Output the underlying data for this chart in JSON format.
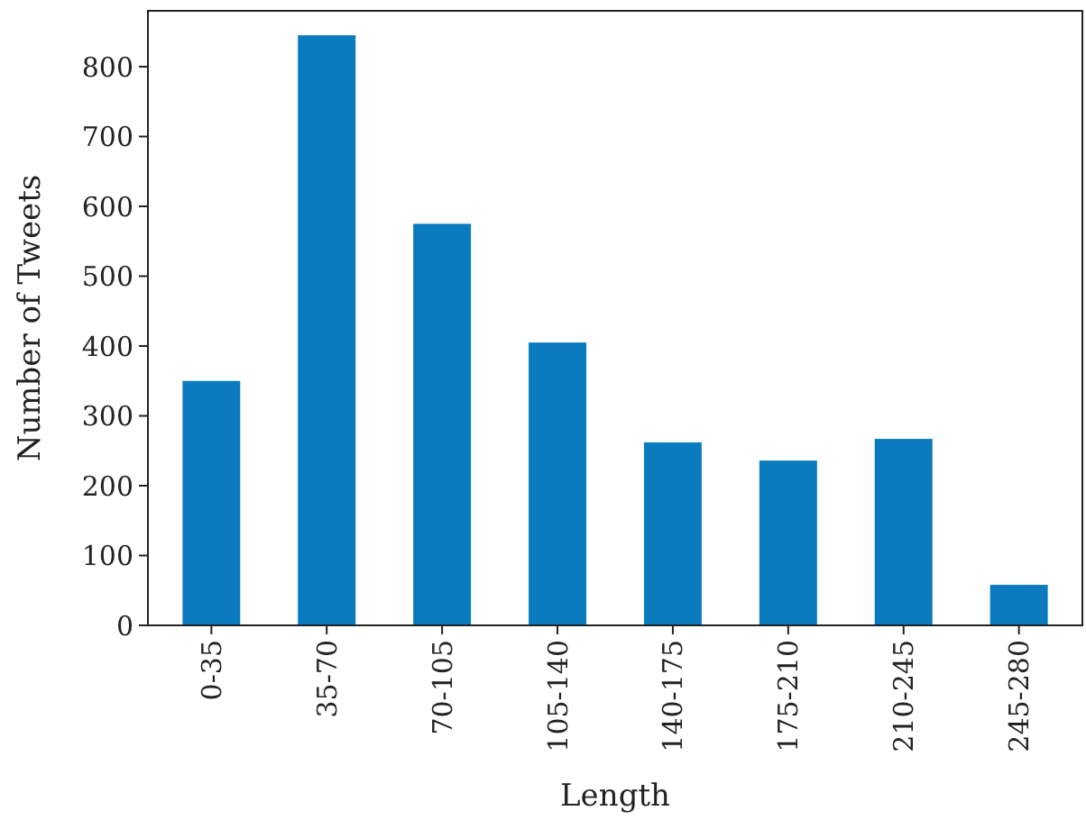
{
  "chart_data": {
    "type": "bar",
    "xlabel": "Length",
    "ylabel": "Number of Tweets",
    "categories": [
      "0-35",
      "35-70",
      "70-105",
      "105-140",
      "140-175",
      "175-210",
      "210-245",
      "245-280"
    ],
    "values": [
      350,
      845,
      575,
      405,
      262,
      236,
      267,
      58
    ],
    "color": "#0a7bbf",
    "ylim": [
      0,
      880
    ],
    "yticks": [
      0,
      100,
      200,
      300,
      400,
      500,
      600,
      700,
      800
    ],
    "grid": false
  }
}
